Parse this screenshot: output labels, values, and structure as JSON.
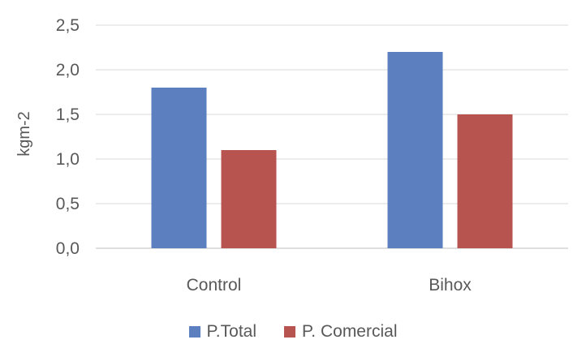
{
  "chart_data": {
    "type": "bar",
    "title": "",
    "xlabel": "",
    "ylabel": "kgm-2",
    "categories": [
      "Control",
      "Bihox"
    ],
    "series": [
      {
        "name": "P.Total",
        "values": [
          1.8,
          2.2
        ],
        "color": "#5b7fbf"
      },
      {
        "name": "P. Comercial",
        "values": [
          1.1,
          1.5
        ],
        "color": "#b85450"
      }
    ],
    "ylim": [
      0,
      2.5
    ],
    "yticks": [
      "0,0",
      "0,5",
      "1,0",
      "1,5",
      "2,0",
      "2,5"
    ],
    "grid": true,
    "legend_position": "bottom"
  }
}
